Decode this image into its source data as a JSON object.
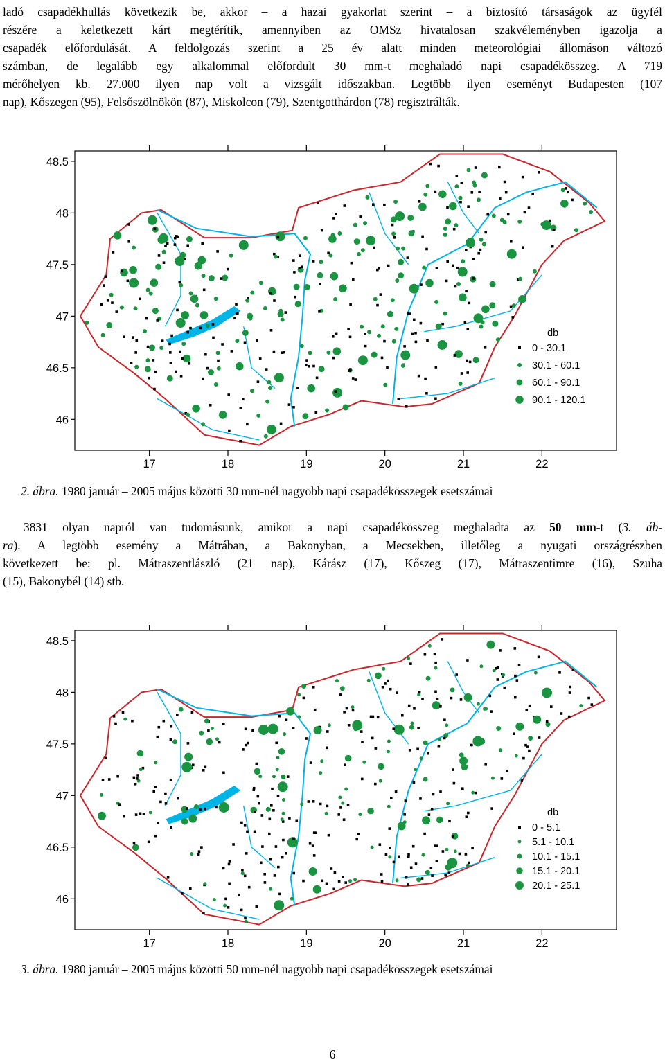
{
  "top_paragraph": {
    "lines": [
      "ladó csapadékhullás következik be, akkor – a hazai gyakorlat szerint – a biztosító társaságok az ügyfél",
      "részére a keletkezett kárt megtérítik, amennyiben az OMSz hivatalosan szakvéleményben igazolja a",
      "csapadék előfordulását. A feldolgozás szerint a 25 év alatt minden meteorológiai állomáson változó",
      "számban, de legalább egy alkalommal előfordult 30 mm-t meghaladó napi csapadékösszeg. A 719",
      "mérőhelyen kb. 27.000 ilyen nap volt a vizsgált időszakban. Legtöbb ilyen eseményt Budapesten (107",
      "nap), Kőszegen (95), Felsőszölnökön (87), Miskolcon (79), Szentgotthárdon (78) regisztrálták."
    ]
  },
  "figure2": {
    "caption_label": "2. ábra.",
    "caption_text": " 1980 január – 2005 május közötti 30 mm-nél nagyobb napi csapadékösszegek esetszámai",
    "chart_data": {
      "type": "scatter",
      "title": "",
      "xlabel": "",
      "ylabel": "",
      "x_ticks": [
        "17",
        "18",
        "19",
        "20",
        "21",
        "22"
      ],
      "y_ticks": [
        "48.5",
        "48",
        "47.5",
        "47",
        "46.5",
        "46"
      ],
      "xlim": [
        16.05,
        22.95
      ],
      "ylim": [
        45.7,
        48.6
      ],
      "legend_title": "db",
      "legend": [
        "0 - 30.1",
        "30.1 - 60.1",
        "60.1 - 90.1",
        "90.1 - 120.1"
      ],
      "legend_position": "bottom-right",
      "colors": {
        "small": "#000000",
        "dots": "#1a9440",
        "border": "#c8282d",
        "water": "#00b4e6"
      }
    }
  },
  "middle_paragraph": {
    "line1_pre": "3831 olyan napról van tudomásunk, amikor a napi csapadékösszeg meghaladta az ",
    "line1_bold": "50 mm",
    "line1_mid": "-t (",
    "line1_ital": "3. áb-",
    "line2_ital": "ra",
    "line2_rest": "). A legtöbb esemény a Mátrában, a Bakonyban, a Mecsekben, illetőleg a nyugati országrészben",
    "line3": "következett be: pl. Mátraszentlászló (21 nap), Kárász (17), Kőszeg (17), Mátraszentimre (16), Szuha",
    "line4": "(15), Bakonybél (14) stb."
  },
  "figure3": {
    "caption_label": "3. ábra.",
    "caption_text": " 1980 január – 2005 május közötti 50 mm-nél nagyobb napi csapadékösszegek esetszámai",
    "chart_data": {
      "type": "scatter",
      "title": "",
      "xlabel": "",
      "ylabel": "",
      "x_ticks": [
        "17",
        "18",
        "19",
        "20",
        "21",
        "22"
      ],
      "y_ticks": [
        "48.5",
        "48",
        "47.5",
        "47",
        "46.5",
        "46"
      ],
      "xlim": [
        16.05,
        22.95
      ],
      "ylim": [
        45.7,
        48.6
      ],
      "legend_title": "db",
      "legend": [
        "0 - 5.1",
        "5.1 - 10.1",
        "10.1 - 15.1",
        "15.1 - 20.1",
        "20.1 - 25.1"
      ],
      "legend_position": "bottom-right",
      "colors": {
        "small": "#000000",
        "dots": "#1a9440",
        "border": "#c8282d",
        "water": "#00b4e6"
      }
    }
  },
  "page_number": "6"
}
